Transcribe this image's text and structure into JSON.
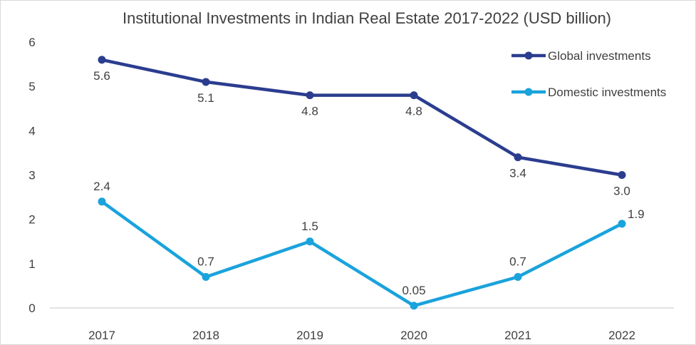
{
  "chart_data": {
    "type": "line",
    "title": "Institutional Investments in Indian Real Estate 2017-2022 (USD billion)",
    "xlabel": "",
    "ylabel": "",
    "categories": [
      "2017",
      "2018",
      "2019",
      "2020",
      "2021",
      "2022"
    ],
    "ylim": [
      0,
      6
    ],
    "yticks": [
      0,
      1,
      2,
      3,
      4,
      5,
      6
    ],
    "grid": false,
    "legend_position": "top-right",
    "series": [
      {
        "name": "Global investments",
        "color": "#2b3d8f",
        "values": [
          5.6,
          5.1,
          4.8,
          4.8,
          3.4,
          3.0
        ],
        "labels": [
          "5.6",
          "5.1",
          "4.8",
          "4.8",
          "3.4",
          "3.0"
        ]
      },
      {
        "name": "Domestic investments",
        "color": "#1aa3dc",
        "values": [
          2.4,
          0.7,
          1.5,
          0.05,
          0.7,
          1.9
        ],
        "labels": [
          "2.4",
          "0.7",
          "1.5",
          "0.05",
          "0.7",
          "1.9"
        ]
      }
    ]
  }
}
